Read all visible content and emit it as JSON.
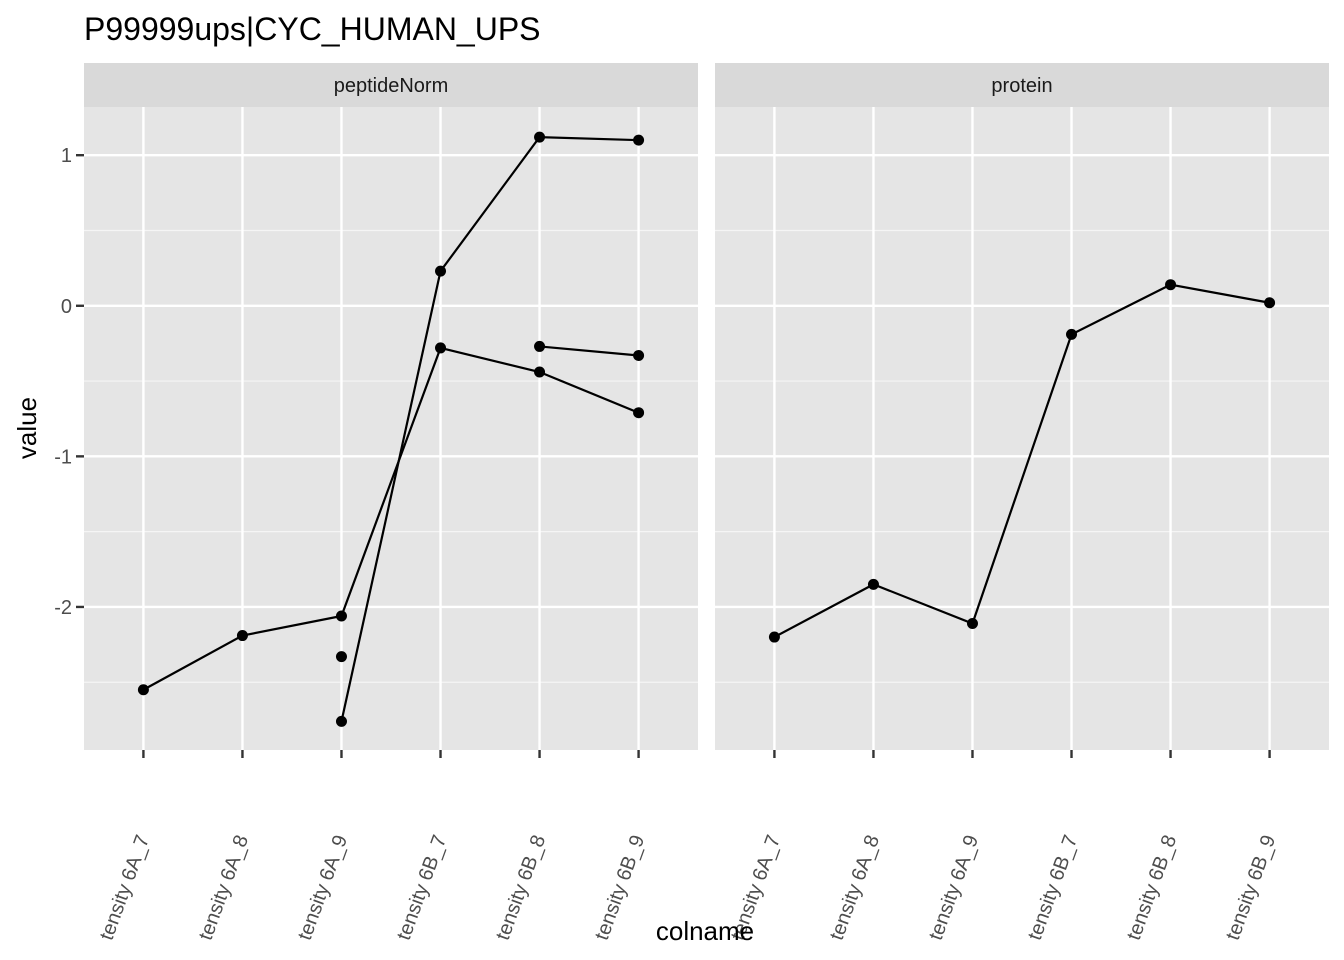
{
  "chart_data": {
    "type": "line",
    "title": "P99999ups|CYC_HUMAN_UPS",
    "xlabel": "colname",
    "ylabel": "value",
    "ylim": [
      -2.95,
      1.32
    ],
    "yticks": [
      1,
      0,
      -1,
      -2
    ],
    "ytick_labels": [
      "1",
      "0",
      "-1",
      "-2"
    ],
    "grid": true,
    "legend": "none",
    "colors": {
      "panel_bg": "#e5e5e5",
      "strip_bg": "#d9d9d9",
      "grid_major": "#ffffff",
      "line": "#000000",
      "point": "#000000"
    },
    "categories": [
      "tensity 6A_7",
      "tensity 6A_8",
      "tensity 6A_9",
      "tensity 6B_7",
      "tensity 6B_8",
      "tensity 6B_9"
    ],
    "facets": [
      {
        "label": "peptideNorm",
        "series": [
          {
            "values": [
              -2.55,
              -2.19,
              -2.06,
              -0.28,
              -0.44,
              -0.71
            ]
          },
          {
            "values": [
              null,
              null,
              -2.76,
              0.23,
              1.12,
              1.1
            ]
          },
          {
            "values": [
              null,
              null,
              -2.33,
              null,
              -0.27,
              -0.33
            ]
          }
        ]
      },
      {
        "label": "protein",
        "series": [
          {
            "values": [
              -2.2,
              -1.85,
              -2.11,
              -0.19,
              0.14,
              0.02
            ]
          }
        ]
      }
    ]
  }
}
